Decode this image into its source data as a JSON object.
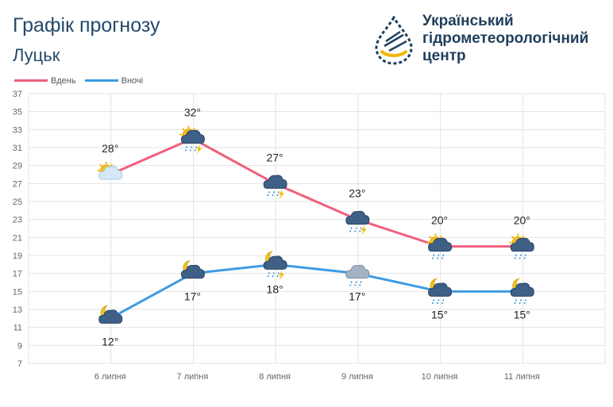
{
  "header": {
    "title": "Графік прогнозу",
    "subtitle": "Луцьк"
  },
  "org": {
    "line1": "Український",
    "line2": "гідрометеорологічний",
    "line3": "центр",
    "logo_icon": "water-drop-logo-icon"
  },
  "legend": {
    "day_label": "Вдень",
    "night_label": "Вночі"
  },
  "colors": {
    "day": "#f0607e",
    "night": "#3d9be3",
    "grid": "#e3e3e3",
    "title": "#24496b"
  },
  "chart_data": {
    "type": "line",
    "categories": [
      "6 липня",
      "7 липня",
      "8 липня",
      "9 липня",
      "10 липня",
      "11 липня"
    ],
    "ylim": [
      7,
      37
    ],
    "yticks": [
      7,
      9,
      11,
      13,
      15,
      17,
      19,
      21,
      23,
      25,
      27,
      29,
      31,
      33,
      35,
      37
    ],
    "grid": true,
    "legend_position": "top-left",
    "series": [
      {
        "name": "Вдень",
        "values": [
          28,
          32,
          27,
          23,
          20,
          20
        ],
        "labels": [
          "28°",
          "32°",
          "27°",
          "23°",
          "20°",
          "20°"
        ],
        "icons": [
          "sun-partly-cloudy-icon",
          "sun-cloud-thunderstorm-rain-icon",
          "cloud-thunderstorm-rain-icon",
          "cloud-thunderstorm-rain-icon",
          "sun-cloud-rain-icon",
          "sun-cloud-rain-icon"
        ]
      },
      {
        "name": "Вночі",
        "values": [
          12,
          17,
          18,
          17,
          15,
          15
        ],
        "labels": [
          "12°",
          "17°",
          "18°",
          "17°",
          "15°",
          "15°"
        ],
        "icons": [
          "moon-cloud-icon",
          "moon-cloud-icon",
          "moon-cloud-thunderstorm-rain-icon",
          "cloud-rain-icon",
          "moon-cloud-rain-icon",
          "moon-cloud-rain-icon"
        ]
      }
    ]
  }
}
